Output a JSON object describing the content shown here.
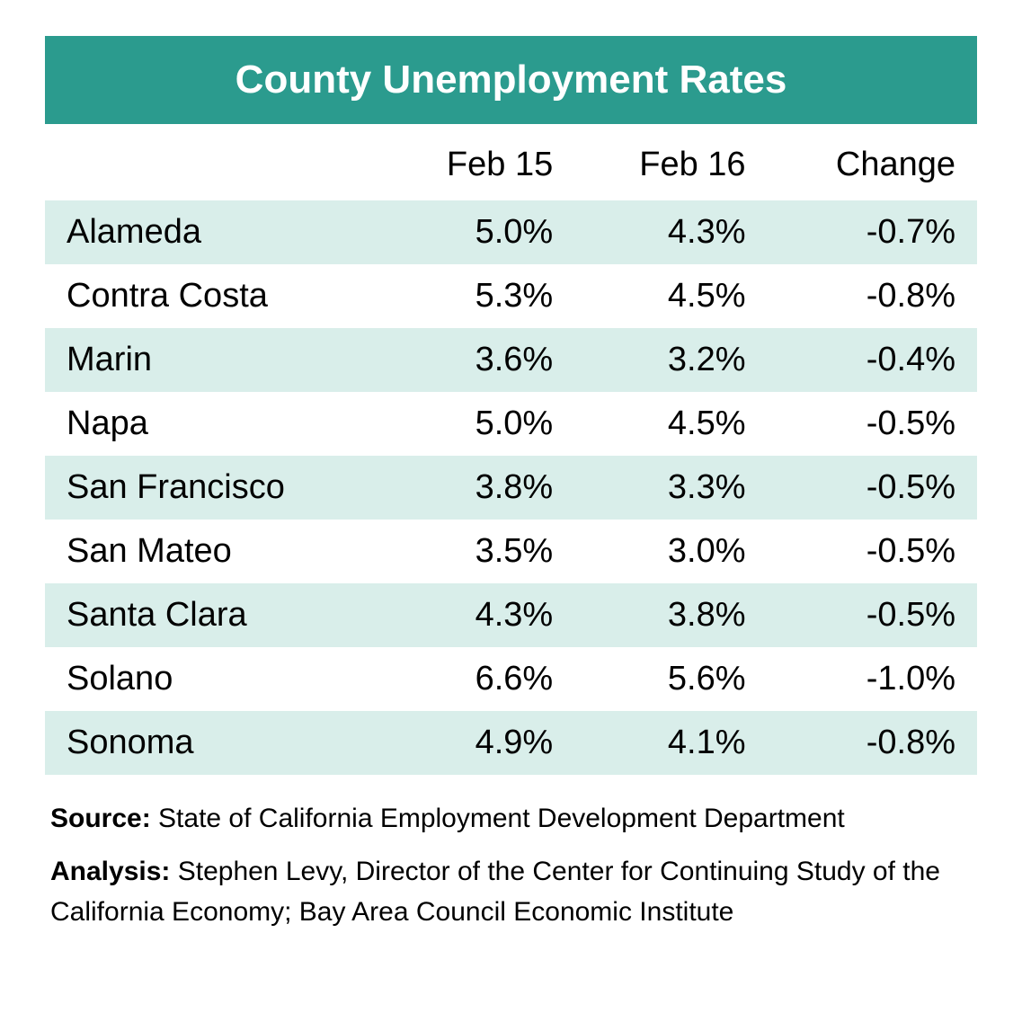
{
  "title": "County Unemployment Rates",
  "table": {
    "type": "table",
    "title_bg": "#2b9b8e",
    "title_color": "#ffffff",
    "title_fontsize": 44,
    "title_fontweight": 700,
    "row_odd_bg": "#d9eeea",
    "row_even_bg": "#ffffff",
    "cell_fontsize": 38,
    "cell_color": "#000000",
    "columns": [
      "",
      "Feb 15",
      "Feb 16",
      "Change"
    ],
    "column_align": [
      "left",
      "right",
      "right",
      "right"
    ],
    "rows": [
      [
        "Alameda",
        "5.0%",
        "4.3%",
        "-0.7%"
      ],
      [
        "Contra Costa",
        "5.3%",
        "4.5%",
        "-0.8%"
      ],
      [
        "Marin",
        "3.6%",
        "3.2%",
        "-0.4%"
      ],
      [
        "Napa",
        "5.0%",
        "4.5%",
        "-0.5%"
      ],
      [
        "San Francisco",
        "3.8%",
        "3.3%",
        "-0.5%"
      ],
      [
        "San Mateo",
        "3.5%",
        "3.0%",
        "-0.5%"
      ],
      [
        "Santa Clara",
        "4.3%",
        "3.8%",
        "-0.5%"
      ],
      [
        "Solano",
        "6.6%",
        "5.6%",
        "-1.0%"
      ],
      [
        "Sonoma",
        "4.9%",
        "4.1%",
        "-0.8%"
      ]
    ]
  },
  "footer": {
    "source_label": "Source:",
    "source_text": " State of California Employment Development Department",
    "analysis_label": "Analysis:",
    "analysis_text": " Stephen Levy, Director of the Center for Continuing Study of the California Economy; Bay Area Council Economic Institute",
    "fontsize": 30,
    "color": "#000000"
  }
}
